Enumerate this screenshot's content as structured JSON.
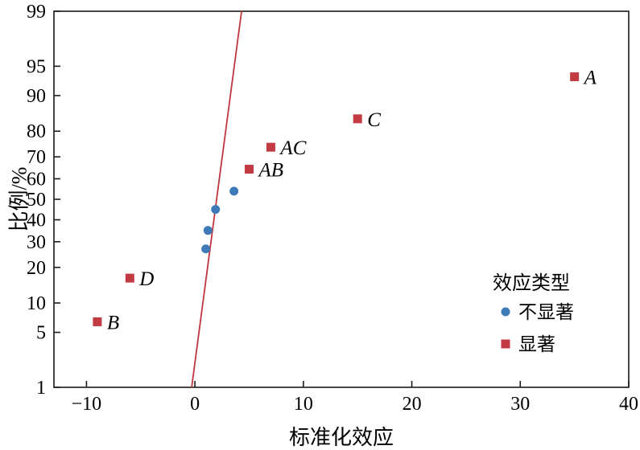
{
  "figure": {
    "background": "#ffffff"
  },
  "chart_data": {
    "type": "scatter",
    "title": "",
    "xlabel": "标准化效应",
    "ylabel": "比例/%",
    "x_ticks": [
      -10,
      0,
      10,
      20,
      30,
      40
    ],
    "x_tick_labels": [
      "−10",
      "0",
      "10",
      "20",
      "30",
      "40"
    ],
    "y_ticks": [
      1,
      5,
      10,
      20,
      30,
      40,
      50,
      60,
      70,
      80,
      90,
      95,
      99
    ],
    "xlim": [
      -13,
      40
    ],
    "ylim_percent": [
      1,
      99
    ],
    "y_scale": "normal-probability",
    "grid": false,
    "colors": {
      "significant": "#c23b42",
      "not_significant": "#3f7ab8",
      "fit_line": "#c0353e",
      "axis": "#1a1a1a"
    },
    "series": [
      {
        "name": "不显著",
        "marker": "circle",
        "color": "#3f7ab8",
        "points": [
          {
            "x": 1.0,
            "y": 27
          },
          {
            "x": 1.2,
            "y": 35
          },
          {
            "x": 1.9,
            "y": 45
          },
          {
            "x": 3.6,
            "y": 54
          }
        ]
      },
      {
        "name": "显著",
        "marker": "square",
        "color": "#c23b42",
        "points": [
          {
            "x": -9,
            "y": 6.5,
            "label": "B"
          },
          {
            "x": -6,
            "y": 16.5,
            "label": "D"
          },
          {
            "x": 5,
            "y": 64.5,
            "label": "AB"
          },
          {
            "x": 7,
            "y": 74,
            "label": "AC"
          },
          {
            "x": 15,
            "y": 84,
            "label": "C"
          },
          {
            "x": 35,
            "y": 93.5,
            "label": "A"
          }
        ]
      }
    ],
    "fit_line": {
      "color": "#c0353e",
      "points_percent": [
        {
          "x": -0.3,
          "p": 1
        },
        {
          "x": 4.3,
          "p": 99
        }
      ]
    },
    "legend": {
      "title": "效应类型",
      "entries": [
        "不显著",
        "显著"
      ],
      "position": "inside-right-bottom"
    }
  }
}
